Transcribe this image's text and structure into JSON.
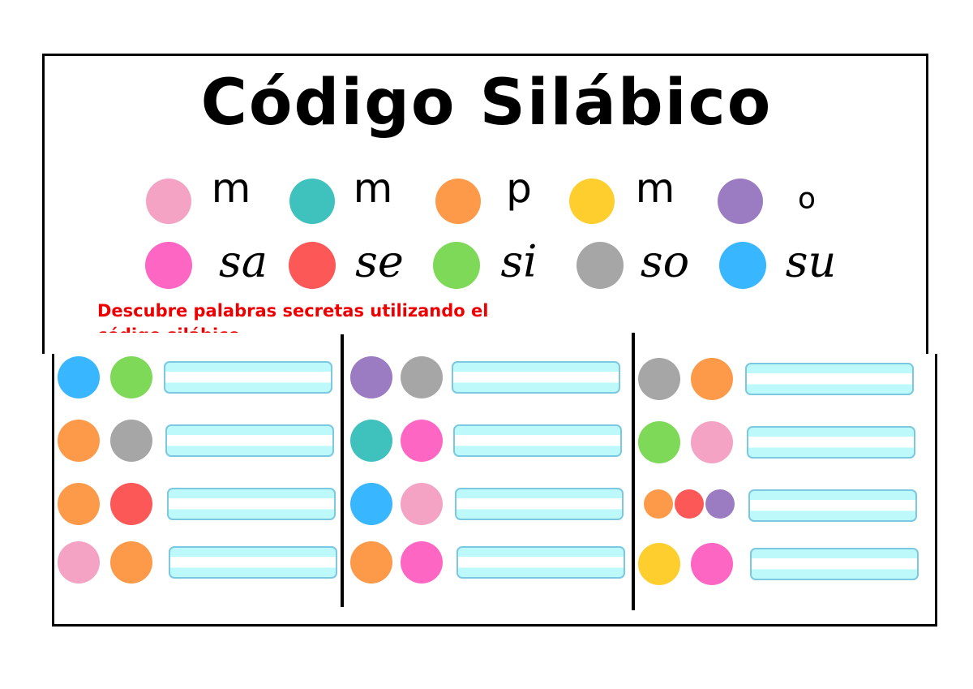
{
  "title": "Código Silábico",
  "colors": {
    "pink": "#f4a3c4",
    "teal": "#3fc1bd",
    "orange": "#fd9a4a",
    "yellow": "#fdce2e",
    "purple": "#9b7bc2",
    "magenta": "#fe66c4",
    "red": "#fd5858",
    "green": "#7dd957",
    "gray": "#a6a6a6",
    "blue": "#38b6ff"
  },
  "legend_letters": [
    {
      "color": "pink",
      "text": "m"
    },
    {
      "color": "teal",
      "text": "m"
    },
    {
      "color": "orange",
      "text": "p"
    },
    {
      "color": "yellow",
      "text": "m"
    },
    {
      "color": "purple",
      "text": "o"
    }
  ],
  "legend_syllables": [
    {
      "color": "magenta",
      "text": "sa"
    },
    {
      "color": "red",
      "text": "se"
    },
    {
      "color": "green",
      "text": "si"
    },
    {
      "color": "gray",
      "text": "so"
    },
    {
      "color": "blue",
      "text": "su"
    }
  ],
  "instruction": "Descubre palabras secretas utilizando el código silábico",
  "columns": [
    [
      [
        "blue",
        "green"
      ],
      [
        "orange",
        "gray"
      ],
      [
        "orange",
        "red"
      ],
      [
        "pink",
        "orange"
      ]
    ],
    [
      [
        "purple",
        "gray"
      ],
      [
        "teal",
        "magenta"
      ],
      [
        "blue",
        "pink"
      ],
      [
        "orange",
        "magenta"
      ]
    ],
    [
      [
        "gray",
        "orange"
      ],
      [
        "green",
        "pink"
      ],
      [
        "orange",
        "red",
        "purple"
      ],
      [
        "yellow",
        "magenta"
      ]
    ]
  ]
}
